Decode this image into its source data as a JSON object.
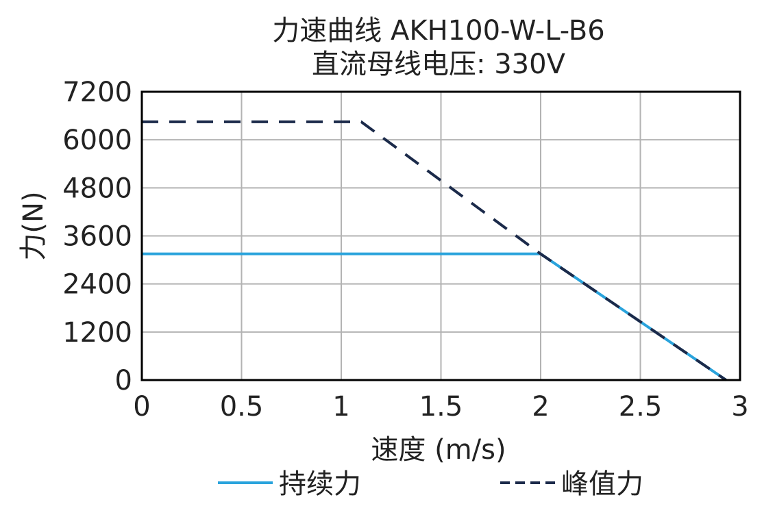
{
  "chart_data": {
    "type": "line",
    "title": "力速曲线 AKH100-W-L-B6",
    "subtitle": "直流母线电压: 330V",
    "xlabel": "速度 (m/s)",
    "ylabel": "力(N)",
    "xlim": [
      0,
      3
    ],
    "ylim": [
      0,
      7200
    ],
    "x_ticks": [
      0,
      0.5,
      1,
      1.5,
      2,
      2.5,
      3
    ],
    "x_tick_labels": [
      "0",
      "0.5",
      "1",
      "1.5",
      "2",
      "2.5",
      "3"
    ],
    "y_ticks": [
      0,
      1200,
      2400,
      3600,
      4800,
      6000,
      7200
    ],
    "y_tick_labels": [
      "0",
      "1200",
      "2400",
      "3600",
      "4800",
      "6000",
      "7200"
    ],
    "grid": true,
    "legend_position": "bottom",
    "series": [
      {
        "name": "持续力",
        "color": "#29a3dc",
        "style": "solid",
        "points": [
          [
            0,
            3150
          ],
          [
            2.0,
            3150
          ],
          [
            2.93,
            0
          ]
        ]
      },
      {
        "name": "峰值力",
        "color": "#1b2a4a",
        "style": "dashed",
        "points": [
          [
            0,
            6450
          ],
          [
            1.1,
            6450
          ],
          [
            2.0,
            3150
          ],
          [
            2.93,
            0
          ]
        ]
      }
    ]
  }
}
